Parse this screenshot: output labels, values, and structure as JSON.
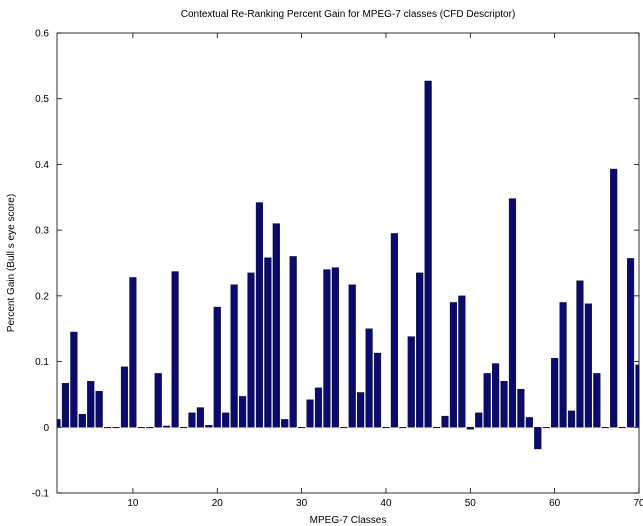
{
  "chart_data": {
    "type": "bar",
    "title": "Contextual Re-Ranking Percent Gain for MPEG-7 classes (CFD Descriptor)",
    "xlabel": "MPEG-7 Classes",
    "ylabel": "Percent Gain (Bull s eye score)",
    "xlim": [
      1,
      70
    ],
    "ylim": [
      -0.1,
      0.6
    ],
    "x_ticks": [
      10,
      20,
      30,
      40,
      50,
      60,
      70
    ],
    "y_ticks": [
      -0.1,
      0,
      0.1,
      0.2,
      0.3,
      0.4,
      0.5,
      0.6
    ],
    "grid": false,
    "bar_color": "#0b0b6e",
    "x": [
      1,
      2,
      3,
      4,
      5,
      6,
      7,
      8,
      9,
      10,
      11,
      12,
      13,
      14,
      15,
      16,
      17,
      18,
      19,
      20,
      21,
      22,
      23,
      24,
      25,
      26,
      27,
      28,
      29,
      30,
      31,
      32,
      33,
      34,
      35,
      36,
      37,
      38,
      39,
      40,
      41,
      42,
      43,
      44,
      45,
      46,
      47,
      48,
      49,
      50,
      51,
      52,
      53,
      54,
      55,
      56,
      57,
      58,
      59,
      60,
      61,
      62,
      63,
      64,
      65,
      66,
      67,
      68,
      69,
      70
    ],
    "values": [
      0.012,
      0.067,
      0.145,
      0.02,
      0.07,
      0.055,
      0,
      0,
      0.092,
      0.228,
      0,
      0,
      0.082,
      0.002,
      0.237,
      0,
      0.022,
      0.03,
      0.003,
      0.183,
      0.022,
      0.217,
      0.047,
      0.235,
      0.342,
      0.258,
      0.31,
      0.012,
      0.26,
      0,
      0.042,
      0.06,
      0.24,
      0.243,
      0,
      0.217,
      0.053,
      0.15,
      0.113,
      0,
      0.295,
      0,
      0.138,
      0.235,
      0.527,
      0,
      0.017,
      0.19,
      0.2,
      -0.003,
      0.022,
      0.082,
      0.097,
      0.07,
      0.348,
      0.058,
      0.015,
      -0.033,
      0,
      0.105,
      0.19,
      0.025,
      0.223,
      0.188,
      0.082,
      0,
      0.393,
      0,
      0.257,
      0.095
    ]
  }
}
